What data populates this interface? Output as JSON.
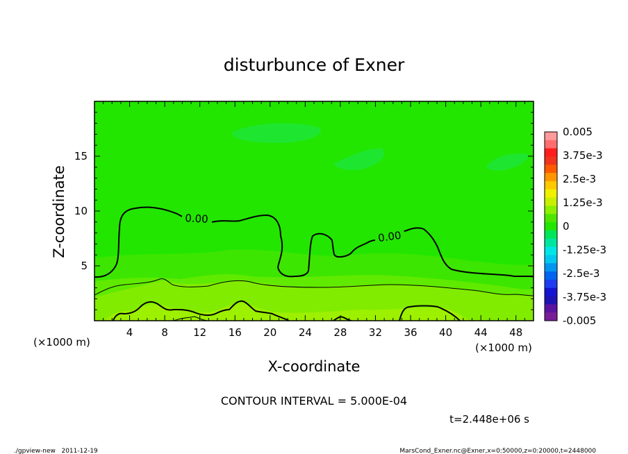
{
  "chart_data": {
    "type": "contour",
    "title": "disturbunce of Exner",
    "xlabel": "X-coordinate",
    "ylabel": "Z-coordinate",
    "x_unit": "(×1000 m)",
    "y_unit": "(×1000 m)",
    "xlim": [
      0,
      50
    ],
    "ylim": [
      0,
      20
    ],
    "x_ticks": [
      4,
      8,
      12,
      16,
      20,
      24,
      28,
      32,
      36,
      40,
      44,
      48
    ],
    "y_ticks": [
      5,
      10,
      15
    ],
    "colorbar": {
      "labels": [
        "0.005",
        "3.75e-3",
        "2.5e-3",
        "1.25e-3",
        "0",
        "-1.25e-3",
        "-2.5e-3",
        "-3.75e-3",
        "-0.005"
      ],
      "colors": [
        "#ff9a9a",
        "#ff6e6e",
        "#ff1e1e",
        "#f0341e",
        "#ff5a00",
        "#ff9600",
        "#ffc800",
        "#f0f000",
        "#c8f000",
        "#8cf000",
        "#4ee600",
        "#22e600",
        "#00e65a",
        "#00e6a0",
        "#00e6e6",
        "#00c8f0",
        "#0096f0",
        "#0064f0",
        "#1e3cf0",
        "#1414d2",
        "#1e14b4",
        "#5a14a0",
        "#781e96"
      ]
    },
    "contour_labels": [
      "0.00",
      "0.00"
    ],
    "contour_interval": "CONTOUR INTERVAL = 5.000E-04",
    "time_label": "t=2.448e+06 s"
  },
  "footer": {
    "left": "./gpview-new   2011-12-19",
    "right": "MarsCond_Exner.nc@Exner,x=0:50000,z=0:20000,t=2448000"
  }
}
